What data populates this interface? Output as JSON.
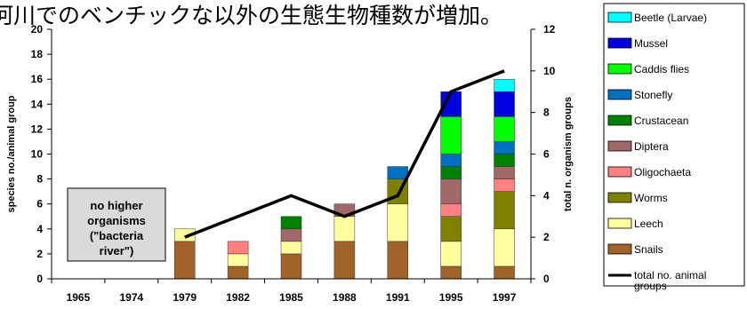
{
  "chart_data": {
    "type": "bar",
    "title": "河川でのベンチックな以外の生態生物種数が増加。",
    "categories": [
      "1965",
      "1974",
      "1979",
      "1982",
      "1985",
      "1988",
      "1991",
      "1995",
      "1997"
    ],
    "ylabel_left": "species no./animal group",
    "ylabel_right": "total n. organism groups",
    "ylim_left": [
      0,
      20
    ],
    "ylim_right": [
      0,
      12
    ],
    "yticks_left": [
      "0",
      "2",
      "4",
      "6",
      "8",
      "10",
      "12",
      "14",
      "16",
      "18",
      "20"
    ],
    "yticks_right": [
      "0",
      "2",
      "4",
      "6",
      "8",
      "10",
      "12"
    ],
    "stacked": true,
    "series": [
      {
        "name": "Snails",
        "color": "#a0642a",
        "values": [
          0,
          0,
          3,
          1,
          2,
          3,
          3,
          1,
          1
        ]
      },
      {
        "name": "Leech",
        "color": "#ffffa0",
        "values": [
          0,
          0,
          1,
          1,
          1,
          2,
          3,
          2,
          3
        ]
      },
      {
        "name": "Worms",
        "color": "#808000",
        "values": [
          0,
          0,
          0,
          0,
          0,
          0,
          2,
          2,
          3
        ]
      },
      {
        "name": "Oligochaeta",
        "color": "#ff8080",
        "values": [
          0,
          0,
          0,
          1,
          0,
          0,
          0,
          1,
          1
        ]
      },
      {
        "name": "Diptera",
        "color": "#a06868",
        "values": [
          0,
          0,
          0,
          0,
          1,
          1,
          0,
          2,
          1
        ]
      },
      {
        "name": "Crustacean",
        "color": "#008000",
        "values": [
          0,
          0,
          0,
          0,
          1,
          0,
          0,
          1,
          1
        ]
      },
      {
        "name": "Stonefly",
        "color": "#0070c0",
        "values": [
          0,
          0,
          0,
          0,
          0,
          0,
          1,
          1,
          1
        ]
      },
      {
        "name": "Caddis flies",
        "color": "#00ff00",
        "values": [
          0,
          0,
          0,
          0,
          0,
          0,
          0,
          3,
          2
        ]
      },
      {
        "name": "Mussel",
        "color": "#0000e0",
        "values": [
          0,
          0,
          0,
          0,
          0,
          0,
          0,
          2,
          2
        ]
      },
      {
        "name": "Beetle (Larvae)",
        "color": "#00ffff",
        "values": [
          0,
          0,
          0,
          0,
          0,
          0,
          0,
          0,
          1
        ]
      }
    ],
    "line_series": {
      "name": "total no. animal groups",
      "color": "#000000",
      "axis": "right",
      "categories": [
        "1979",
        "1985",
        "1988",
        "1991",
        "1995",
        "1997"
      ],
      "values": [
        2,
        4,
        3,
        4,
        9,
        10
      ]
    },
    "annotation": "no higher organisms (\"bacteria river\")",
    "legend_position": "right"
  }
}
